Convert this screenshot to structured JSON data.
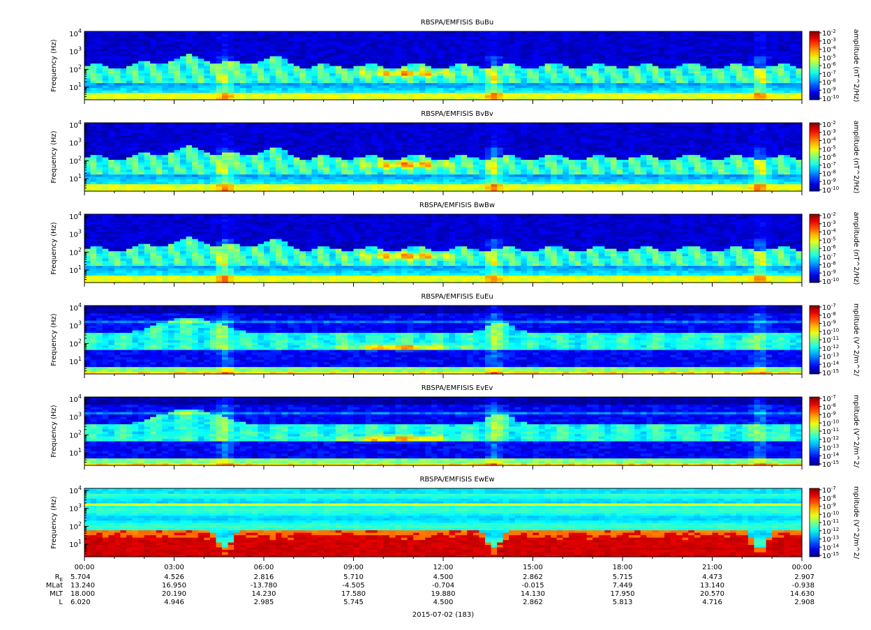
{
  "chart_data": {
    "type": "heatmap",
    "date_label": "2015-07-02 (183)",
    "x_ticks": [
      "00:00",
      "03:00",
      "06:00",
      "09:00",
      "12:00",
      "15:00",
      "18:00",
      "21:00",
      "00:00"
    ],
    "y_label": "Frequency (Hz)",
    "y_scale": "log",
    "y_ticks": [
      {
        "base": "10",
        "exp": "1"
      },
      {
        "base": "10",
        "exp": "2"
      },
      {
        "base": "10",
        "exp": "3"
      },
      {
        "base": "10",
        "exp": "4"
      }
    ],
    "panels": [
      {
        "title": "RBSPA/EMFISIS  BuBu",
        "colorbar_label": "amplitude (nT^2/Hz)",
        "colorbar_exps": [
          "-2",
          "-3",
          "-4",
          "-5",
          "-6",
          "-7",
          "-8",
          "-9",
          "-10"
        ],
        "kind": "B"
      },
      {
        "title": "RBSPA/EMFISIS  BvBv",
        "colorbar_label": "amplitude (nT^2/Hz)",
        "colorbar_exps": [
          "-2",
          "-3",
          "-4",
          "-5",
          "-6",
          "-7",
          "-8",
          "-9",
          "-10"
        ],
        "kind": "B"
      },
      {
        "title": "RBSPA/EMFISIS  BwBw",
        "colorbar_label": "amplitude (nT^2/Hz)",
        "colorbar_exps": [
          "-2",
          "-3",
          "-4",
          "-5",
          "-6",
          "-7",
          "-8",
          "-9",
          "-10"
        ],
        "kind": "B"
      },
      {
        "title": "RBSPA/EMFISIS  EuEu",
        "colorbar_label": "mplitude (V^2/m^2/",
        "colorbar_exps": [
          "-7",
          "-8",
          "-9",
          "-10",
          "-11",
          "-12",
          "-13",
          "-14",
          "-15"
        ],
        "kind": "E"
      },
      {
        "title": "RBSPA/EMFISIS  EvEv",
        "colorbar_label": "mplitude (V^2/m^2/",
        "colorbar_exps": [
          "-7",
          "-8",
          "-9",
          "-10",
          "-11",
          "-12",
          "-13",
          "-14",
          "-15"
        ],
        "kind": "E"
      },
      {
        "title": "RBSPA/EMFISIS  EwEw",
        "colorbar_label": "mplitude (V^2/m^2/",
        "colorbar_exps": [
          "-7",
          "-8",
          "-9",
          "-10",
          "-11",
          "-12",
          "-13",
          "-14",
          "-15"
        ],
        "kind": "W"
      }
    ],
    "ephemeris": {
      "rows": [
        {
          "label": "R",
          "sub": "E",
          "values": [
            "5.704",
            "4.526",
            "2.816",
            "5.710",
            "4.500",
            "2.862",
            "5.715",
            "4.473",
            "2.907"
          ]
        },
        {
          "label": "MLat",
          "values": [
            "13.240",
            "16.950",
            "-13.780",
            "-4.505",
            "-0.704",
            "-0.015",
            "7.449",
            "13.140",
            "-0.938"
          ]
        },
        {
          "label": "MLT",
          "values": [
            "18.000",
            "20.190",
            "14.230",
            "17.580",
            "19.880",
            "14.130",
            "17.950",
            "20.570",
            "14.630"
          ]
        },
        {
          "label": "L",
          "values": [
            "6.020",
            "4.946",
            "2.985",
            "5.745",
            "4.500",
            "2.862",
            "5.813",
            "4.716",
            "2.908"
          ]
        }
      ]
    }
  }
}
